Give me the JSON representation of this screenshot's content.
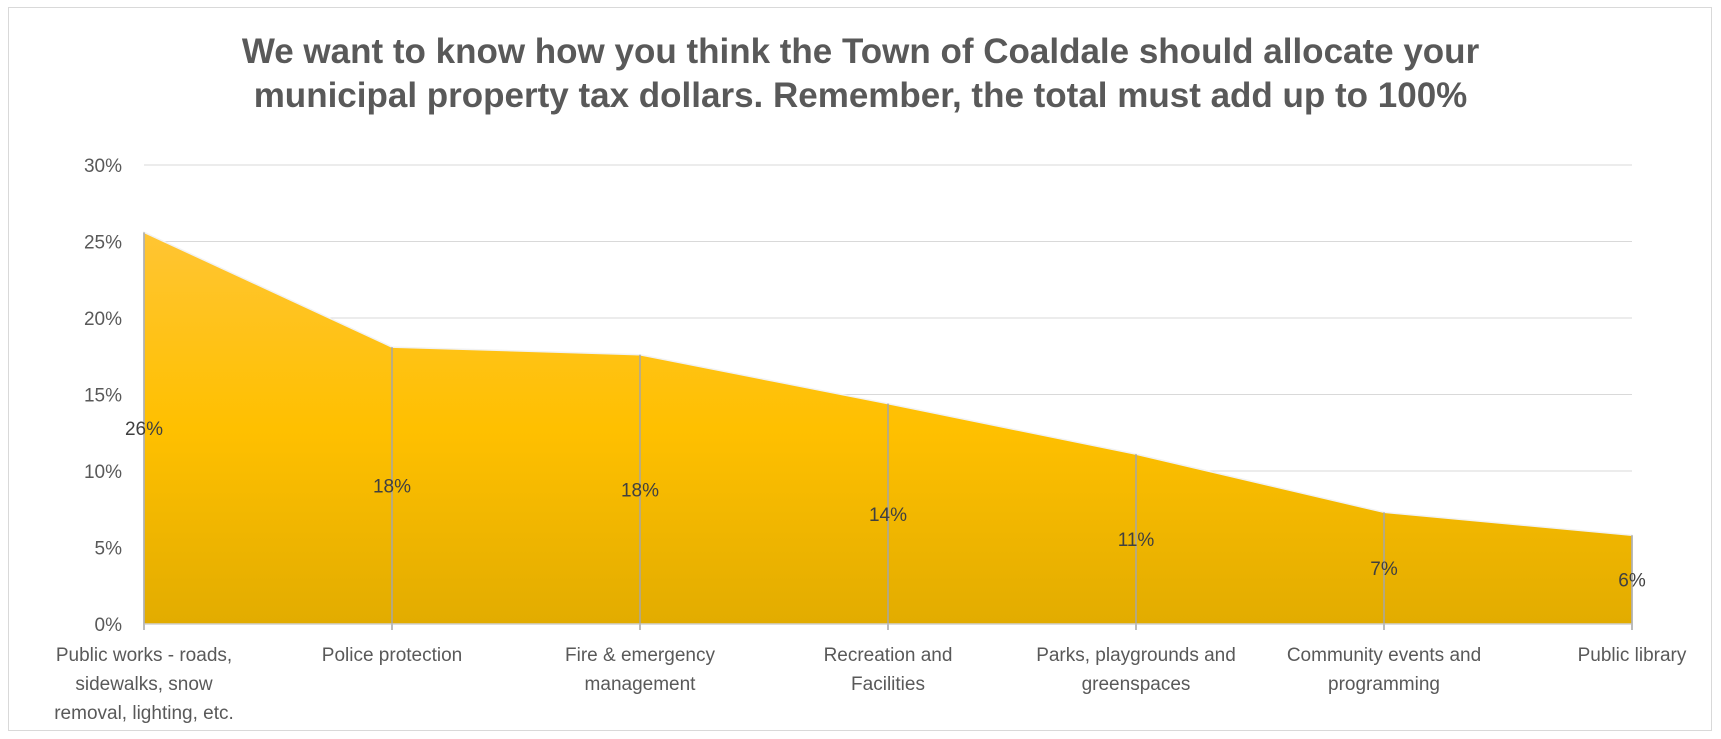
{
  "chart_data": {
    "type": "area",
    "title": "We want to know how you think the Town of Coaldale should allocate your\nmunicipal property tax dollars. Remember, the total must add up to 100%",
    "categories": [
      "Public works - roads,\nsidewalks, snow\nremoval, lighting, etc.",
      "Police protection",
      "Fire & emergency\nmanagement",
      "Recreation and\nFacilities",
      "Parks, playgrounds and\ngreenspaces",
      "Community events and\nprogramming",
      "Public library"
    ],
    "values": [
      25.6,
      18.1,
      17.6,
      14.4,
      11.1,
      7.3,
      5.8
    ],
    "data_labels": [
      "26%",
      "18%",
      "18%",
      "14%",
      "11%",
      "7%",
      "6%"
    ],
    "y_ticks": [
      "0%",
      "5%",
      "10%",
      "15%",
      "20%",
      "25%",
      "30%"
    ],
    "ylim": [
      0,
      30
    ],
    "xlabel": "",
    "ylabel": "",
    "grid": true,
    "legend": "none",
    "colors": {
      "fill_top": "#FFC533",
      "fill_mid": "#FFC000",
      "fill_bottom": "#E2AC00",
      "drop_line": "#A6A6A6",
      "grid": "#D9D9D9",
      "text": "#404040",
      "axis_text": "#595959",
      "title": "#595959"
    }
  }
}
